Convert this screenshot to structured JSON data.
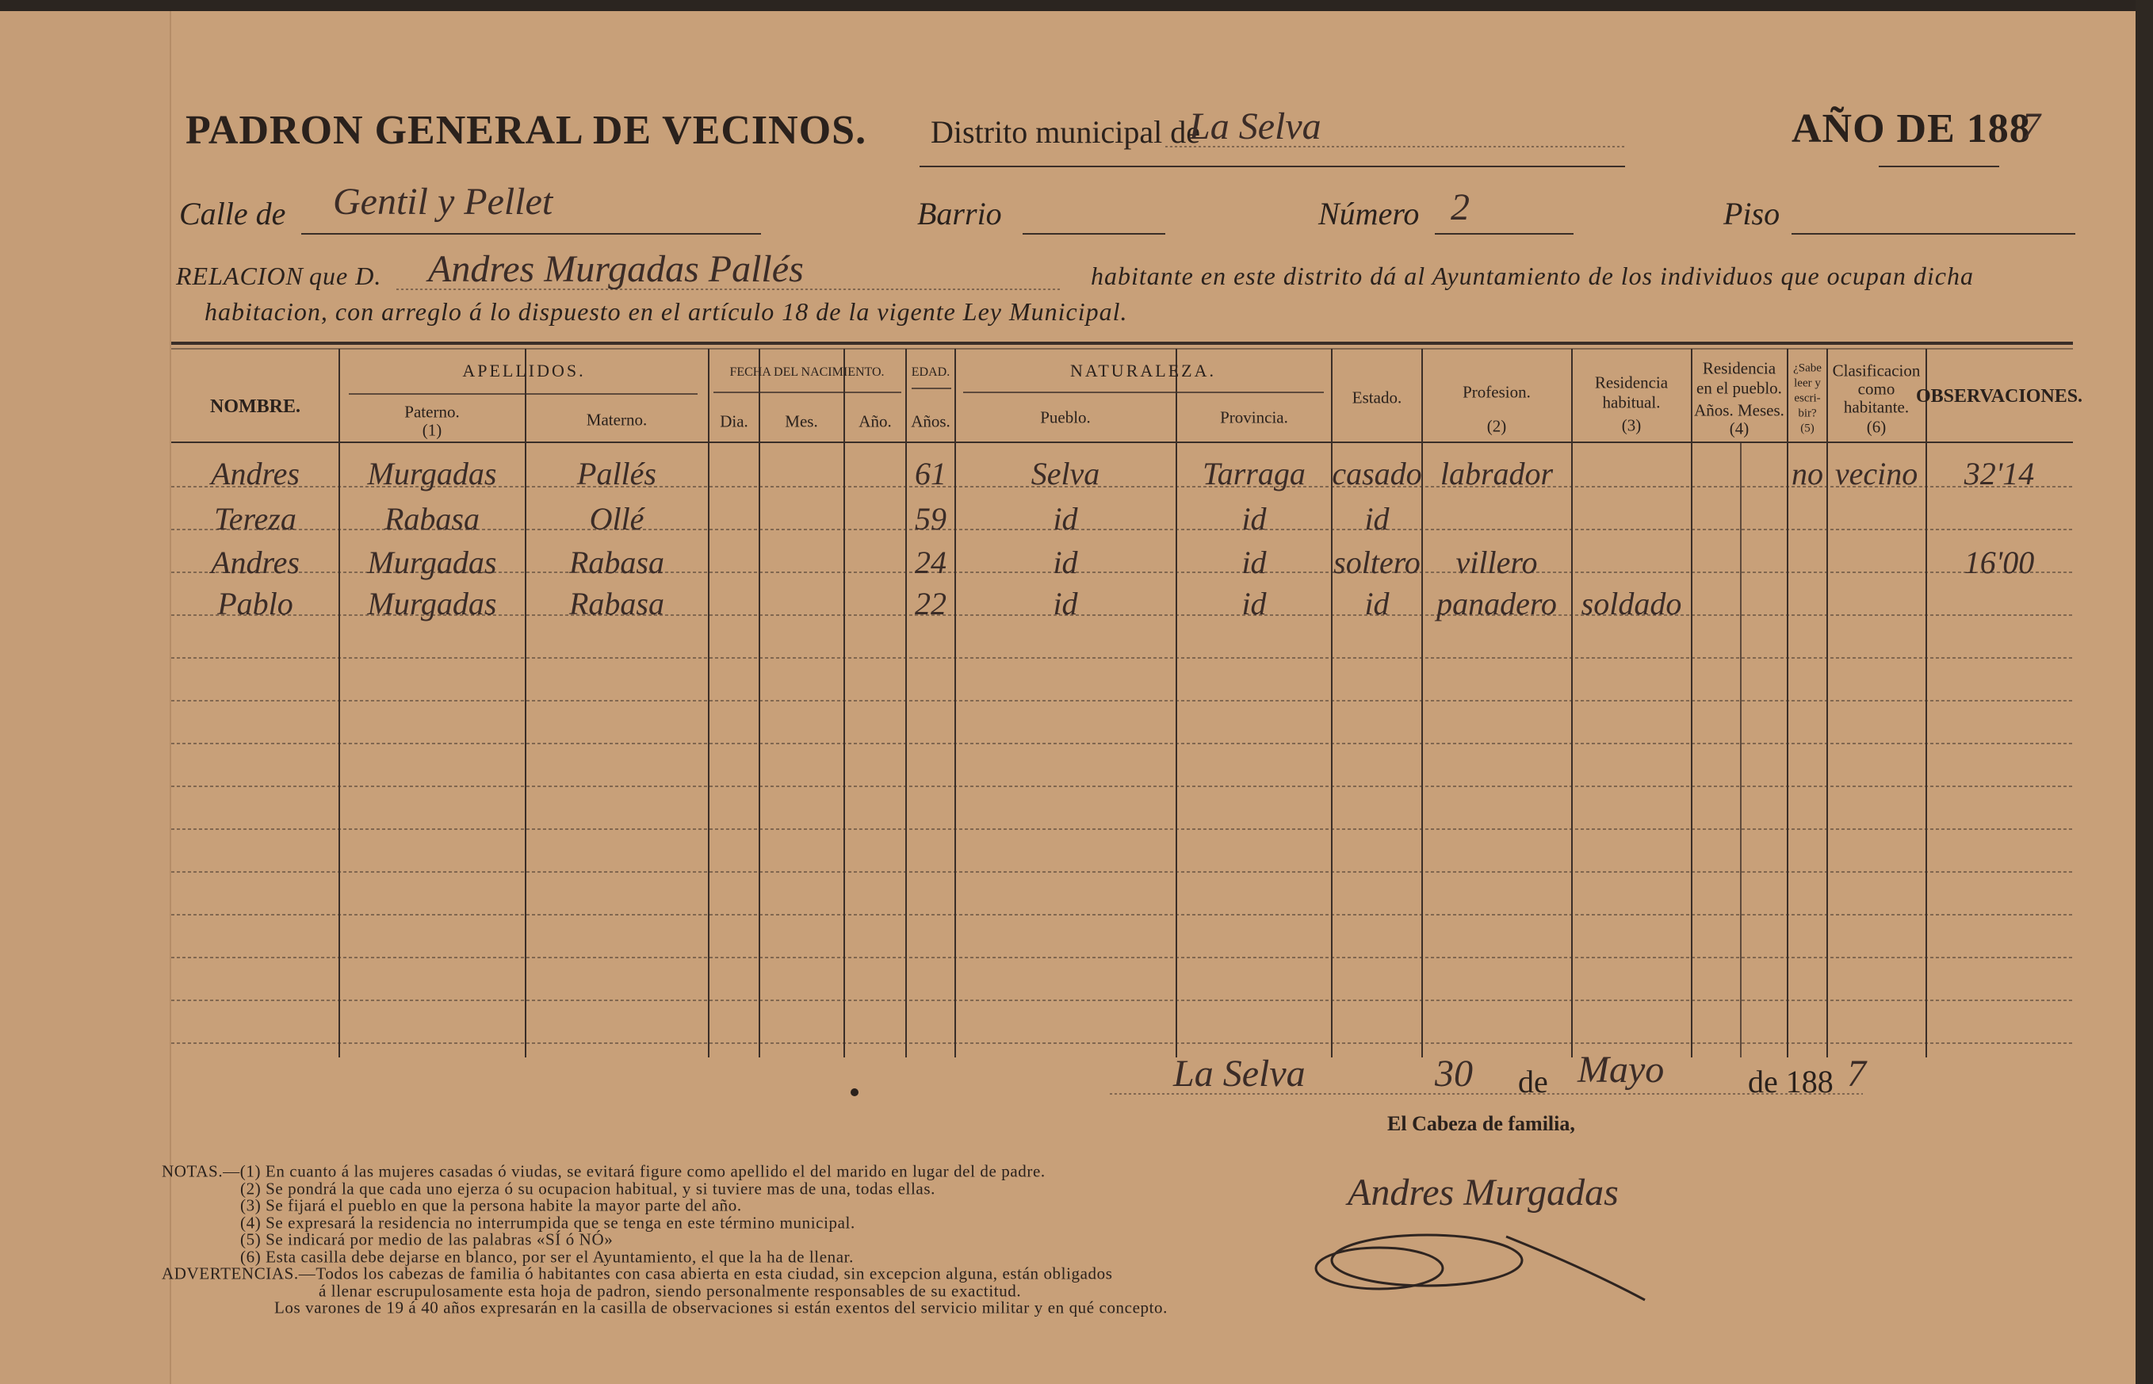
{
  "header": {
    "title": "PADRON GENERAL DE VECINOS.",
    "district_label": "Distrito municipal de",
    "district": "La Selva",
    "year_label": "AÑO DE 188",
    "year_digit": "7",
    "street_label": "Calle de",
    "street": "Gentil y Pellet",
    "barrio_label": "Barrio",
    "numero_label": "Número",
    "numero": "2",
    "piso_label": "Piso"
  },
  "relacion": {
    "label": "RELACION",
    "que": "que D.",
    "name": "Andres Murgadas Pallés",
    "text1": "habitante en este distrito dá al Ayuntamiento de los individuos que ocupan dicha",
    "text2": "habitacion, con arreglo á lo dispuesto en el artículo 18 de la vigente Ley Municipal."
  },
  "table": {
    "groups": {
      "apellidos": "APELLIDOS.",
      "fecha": "FECHA DEL NACIMIENTO.",
      "edad": "EDAD.",
      "naturaleza": "NATURALEZA."
    },
    "headers": {
      "nombre": [
        "NOMBRE."
      ],
      "paterno": [
        "Paterno.",
        "(1)"
      ],
      "materno": [
        "Materno."
      ],
      "dia": [
        "Dia."
      ],
      "mes": [
        "Mes."
      ],
      "ano": [
        "Año."
      ],
      "edad": [
        "Años."
      ],
      "pueblo": [
        "Pueblo."
      ],
      "provincia": [
        "Provincia."
      ],
      "estado": [
        "Estado."
      ],
      "profesion": [
        "Profesion.",
        "(2)"
      ],
      "residencia": [
        "Residencia",
        "habitual.",
        "(3)"
      ],
      "residencia_pueblo": [
        "Residencia",
        "en el pueblo.",
        "Años.  Meses.",
        "(4)"
      ],
      "sabe": [
        "¿Sabe",
        "leer y",
        "escri-",
        "bir?",
        "(5)"
      ],
      "clasificacion": [
        "Clasificacion",
        "como",
        "habitante.",
        "(6)"
      ],
      "observaciones": [
        "OBSERVACIONES."
      ]
    },
    "rows": [
      {
        "nombre": "Andres",
        "paterno": "Murgadas",
        "materno": "Pallés",
        "edad": "61",
        "pueblo": "Selva",
        "provincia": "Tarraga",
        "estado": "casado",
        "profesion": "labrador",
        "sabe": "no",
        "clasificacion": "vecino",
        "observaciones": "32'14"
      },
      {
        "nombre": "Tereza",
        "paterno": "Rabasa",
        "materno": "Ollé",
        "edad": "59",
        "pueblo": "id",
        "provincia": "id",
        "estado": "id"
      },
      {
        "nombre": "Andres",
        "paterno": "Murgadas",
        "materno": "Rabasa",
        "edad": "24",
        "pueblo": "id",
        "provincia": "id",
        "estado": "soltero",
        "profesion": "villero",
        "observaciones": "16'00"
      },
      {
        "nombre": "Pablo",
        "paterno": "Murgadas",
        "materno": "Rabasa",
        "edad": "22",
        "pueblo": "id",
        "provincia": "id",
        "estado": "id",
        "profesion": "panadero",
        "residencia": "soldado"
      }
    ]
  },
  "footer": {
    "place": "La Selva",
    "day": "30",
    "de1": "de",
    "month": "Mayo",
    "de2": "de 188",
    "year_digit": "7",
    "signature_label": "El Cabeza de familia,",
    "signature": "Andres Murgadas"
  },
  "notes": [
    "NOTAS.—(1) En cuanto á las mujeres casadas ó viudas, se evitará figure como apellido el del marido en lugar del de padre.",
    "(2) Se pondrá la que cada uno ejerza ó su ocupacion habitual, y si tuviere mas de una, todas ellas.",
    "(3) Se fijará el pueblo en que la persona habite la mayor parte del año.",
    "(4) Se expresará la residencia no interrumpida que se tenga en este término municipal.",
    "(5) Se indicará por medio de las palabras «SÍ ó NÓ»",
    "(6) Esta casilla debe dejarse en blanco, por ser el Ayuntamiento, el que la ha de llenar.",
    "ADVERTENCIAS.—Todos los cabezas de familia ó habitantes con casa abierta en esta ciudad, sin excepcion alguna, están obligados",
    "á llenar escrupulosamente esta hoja de padron, siendo personalmente responsables de su exactitud.",
    "Los varones de 19 á 40 años expresarán en la casilla de observaciones si están exentos del servicio militar y en qué concepto."
  ]
}
